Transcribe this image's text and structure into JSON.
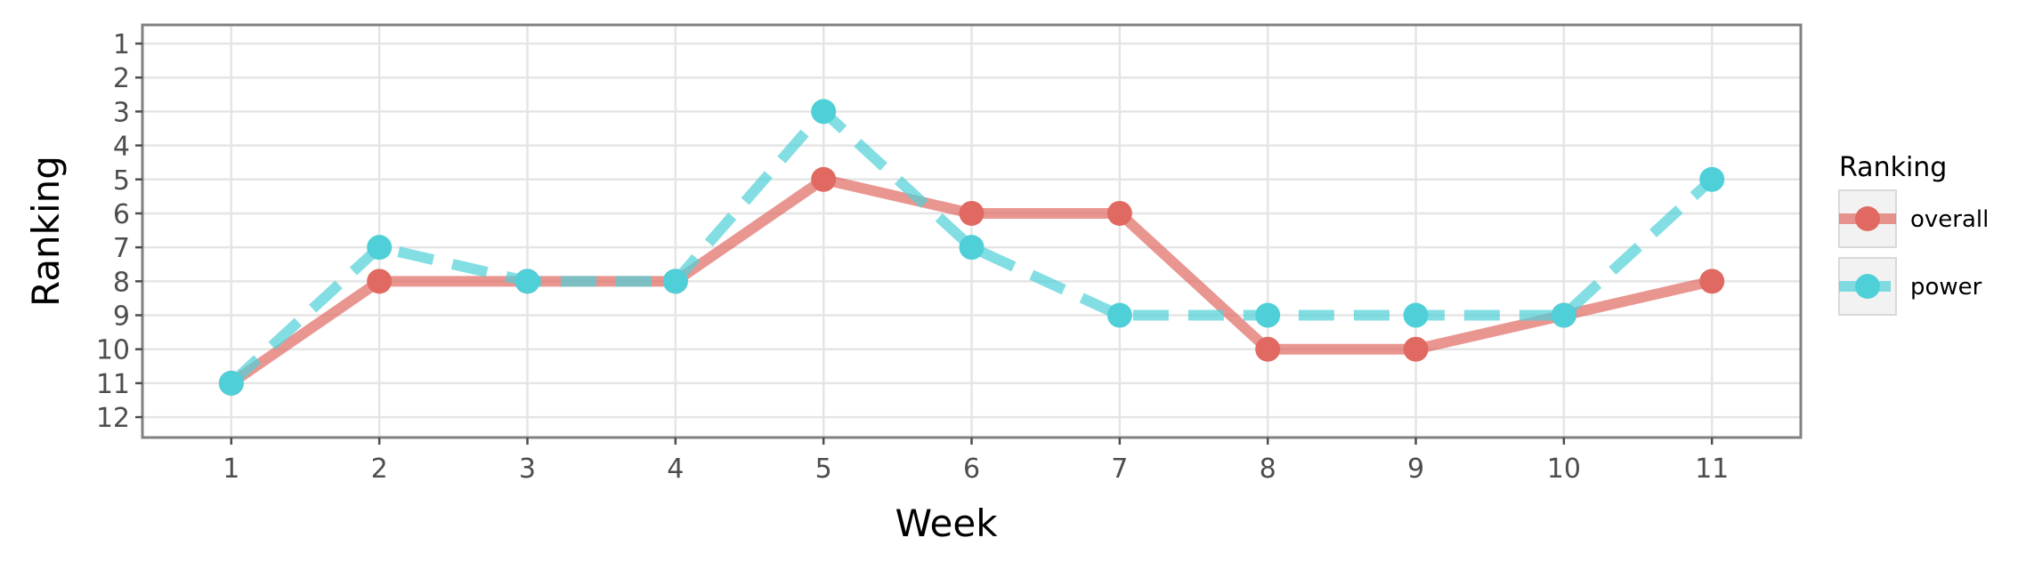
{
  "chart_data": {
    "type": "line",
    "xlabel": "Week",
    "ylabel": "Ranking",
    "x": [
      1,
      2,
      3,
      4,
      5,
      6,
      7,
      8,
      9,
      10,
      11
    ],
    "x_ticks": [
      "1",
      "2",
      "3",
      "4",
      "5",
      "6",
      "7",
      "8",
      "9",
      "10",
      "11"
    ],
    "y_ticks": [
      "1",
      "2",
      "3",
      "4",
      "5",
      "6",
      "7",
      "8",
      "9",
      "10",
      "11",
      "12"
    ],
    "y_reversed": true,
    "xlim": [
      0.4,
      11.6
    ],
    "ylim": [
      12.6,
      0.45
    ],
    "grid": true,
    "legend": {
      "title": "Ranking",
      "placement": "right"
    },
    "series": [
      {
        "name": "overall",
        "color": "#E06A62",
        "line_style": "solid",
        "values": [
          11,
          8,
          8,
          8,
          5,
          6,
          6,
          10,
          10,
          9,
          8
        ]
      },
      {
        "name": "power",
        "color": "#4FD0D8",
        "line_style": "dashed",
        "values": [
          11,
          7,
          8,
          8,
          3,
          7,
          9,
          9,
          9,
          9,
          5
        ]
      }
    ]
  }
}
